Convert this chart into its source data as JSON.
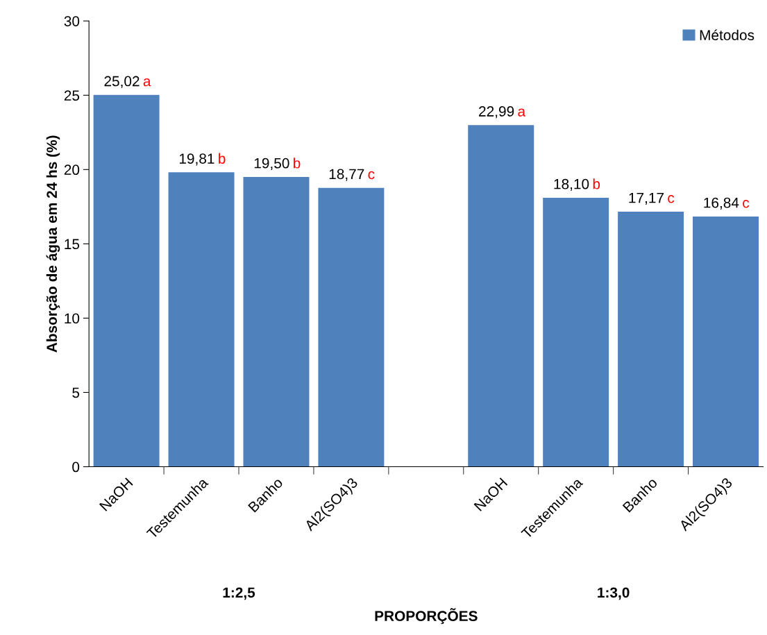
{
  "chart_data": {
    "type": "bar",
    "categories": [
      "NaOH",
      "Testemunha",
      "Banho",
      "Al2(SO4)3",
      null,
      "NaOH",
      "Testemunha",
      "Banho",
      "Al2(SO4)3"
    ],
    "series": [
      {
        "name": "Métodos",
        "color": "#4f81bd",
        "values": [
          25.02,
          19.81,
          19.5,
          18.77,
          null,
          22.99,
          18.1,
          17.17,
          16.84
        ],
        "value_labels": [
          "25,02",
          "19,81",
          "19,50",
          "18,77",
          null,
          "22,99",
          "18,10",
          "17,17",
          "16,84"
        ]
      }
    ],
    "ylabel": "Absorção de água em 24 hs (%)",
    "xlabel": "PROPORÇÕES",
    "ylim": [
      0,
      30
    ],
    "yticks": [
      0,
      5,
      10,
      15,
      20,
      25,
      30
    ],
    "grid": false,
    "legend": "top right",
    "annotations": [
      "a",
      "b",
      "b",
      "c",
      "a",
      "b",
      "c",
      "c",
      "1:2,5",
      "1:3,0"
    ]
  }
}
